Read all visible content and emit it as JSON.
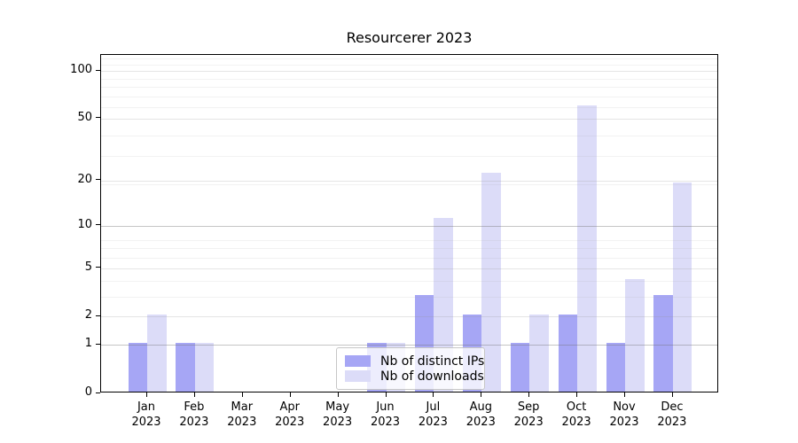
{
  "chart_data": {
    "type": "bar",
    "title": "Resourcerer 2023",
    "categories": [
      "Jan",
      "Feb",
      "Mar",
      "Apr",
      "May",
      "Jun",
      "Jul",
      "Aug",
      "Sep",
      "Oct",
      "Nov",
      "Dec"
    ],
    "category_year": "2023",
    "series": [
      {
        "name": "Nb of distinct IPs",
        "color": "#a6a6f5",
        "values": [
          1,
          1,
          0,
          0,
          0,
          1,
          3,
          2,
          1,
          2,
          1,
          3
        ]
      },
      {
        "name": "Nb of downloads",
        "color": "#dcdcf8",
        "values": [
          2,
          1,
          0,
          0,
          0,
          1,
          11,
          22,
          2,
          59,
          4,
          19
        ]
      }
    ],
    "xlabel": "",
    "ylabel": "",
    "yscale": "log1p",
    "yticks": [
      0,
      1,
      2,
      5,
      10,
      20,
      50,
      100
    ],
    "ylim": [
      0,
      126
    ],
    "grid": true,
    "legend_position": "lower-center-inside",
    "colors": {
      "grid_major": "rgba(110,110,110,0.40)",
      "grid_tick": "rgba(150,150,150,0.25)",
      "grid_minor": "rgba(170,170,170,0.15)",
      "axis": "#000000",
      "background": "#ffffff"
    }
  }
}
